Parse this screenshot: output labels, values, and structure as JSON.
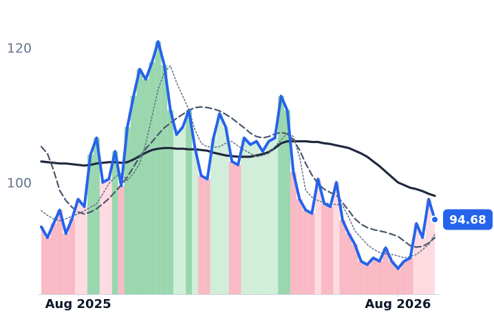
{
  "chart_data": {
    "type": "line",
    "x": [
      0,
      1,
      2,
      3,
      4,
      5,
      6,
      7,
      8,
      9,
      10,
      11,
      12,
      13,
      14,
      15,
      16,
      17,
      18,
      19,
      20,
      21,
      22,
      23,
      24,
      25,
      26,
      27,
      28,
      29,
      30,
      31,
      32,
      33,
      34,
      35,
      36,
      37,
      38,
      39,
      40,
      41,
      42,
      43,
      44,
      45,
      46,
      47,
      48,
      49,
      50,
      51,
      52,
      53,
      54,
      55,
      56,
      57,
      58,
      59,
      60,
      61,
      62,
      63,
      64
    ],
    "xlim": [
      0,
      64
    ],
    "xticks": [
      {
        "value": 6,
        "label": "Aug 2025"
      },
      {
        "value": 58,
        "label": "Aug 2026"
      }
    ],
    "ylim": [
      83.6,
      124.2
    ],
    "yticks": [
      100,
      120
    ],
    "shading": {
      "above_strong": "#9ad7ae",
      "above_weak": "#d1eedb",
      "below_strong": "#f9bac6",
      "below_weak": "#fddbe1"
    },
    "series": [
      {
        "color": "#2563eb",
        "width": 4,
        "dash": "none",
        "last_label": true,
        "values": [
          93.6,
          92,
          94.1,
          96.1,
          92.6,
          94.8,
          97.7,
          96.6,
          104.3,
          106.8,
          100.2,
          100.7,
          104.8,
          99.7,
          108.4,
          113,
          117,
          115.5,
          118,
          121.1,
          117.6,
          110.9,
          107.3,
          108.4,
          110.9,
          105.3,
          101.2,
          100.7,
          106.8,
          110.4,
          108.4,
          103.3,
          102.8,
          106.8,
          105.8,
          106.3,
          104.8,
          106.3,
          106.8,
          113,
          110.9,
          101.7,
          97.7,
          96.1,
          95.6,
          100.7,
          97.1,
          96.6,
          100.2,
          94.6,
          92.6,
          91,
          88.5,
          88,
          89,
          88.5,
          90.5,
          88.5,
          87.4,
          88.5,
          89,
          94.1,
          92,
          97.7,
          94.68
        ]
      },
      {
        "color": "#64748b",
        "width": 1.6,
        "dash": "2 3",
        "last_label": false,
        "values": [
          96,
          95.3,
          94.8,
          94.5,
          94.8,
          95.2,
          95.5,
          96,
          96.5,
          97,
          98.5,
          100,
          101,
          101.5,
          100.5,
          101.5,
          103,
          106,
          110,
          114,
          116.5,
          117.5,
          115,
          113,
          111,
          108,
          106,
          105.5,
          105.4,
          105.5,
          106,
          106.3,
          105.6,
          105,
          104.5,
          104,
          104.2,
          104.5,
          105.5,
          106.5,
          107.5,
          107,
          104,
          99,
          98,
          97.5,
          97.2,
          97,
          96.9,
          96.8,
          95,
          93,
          92,
          91,
          90.3,
          89.8,
          89.6,
          89.5,
          89.3,
          89,
          89.2,
          89.5,
          90.2,
          91,
          92.5
        ]
      },
      {
        "color": "#475569",
        "width": 2.2,
        "dash": "9 5",
        "last_label": false,
        "values": [
          105.5,
          104.5,
          102,
          99,
          97.5,
          96.5,
          95.8,
          95.5,
          95.8,
          96.3,
          97,
          97.8,
          98.8,
          99.8,
          101,
          102.5,
          104,
          105.2,
          106.2,
          107.3,
          108.3,
          109,
          109.7,
          110.3,
          110.9,
          111.3,
          111.4,
          111.3,
          111.1,
          110.8,
          110.3,
          109.7,
          109,
          108.3,
          107.5,
          107,
          106.8,
          107,
          107.4,
          107.6,
          107.4,
          106.5,
          105,
          103,
          101.3,
          100,
          99.2,
          98.7,
          98.3,
          97.2,
          96,
          94.8,
          94,
          93.5,
          93.2,
          93,
          92.8,
          92.5,
          92.2,
          91.5,
          90.8,
          90.6,
          90.7,
          91.2,
          92
        ]
      },
      {
        "color": "#1e293b",
        "width": 3.2,
        "dash": "none",
        "last_label": false,
        "values": [
          103.3,
          103.2,
          103.1,
          103,
          103,
          102.9,
          102.8,
          102.7,
          102.8,
          103,
          103.1,
          103.2,
          103.2,
          103.1,
          103.2,
          103.6,
          104.1,
          104.6,
          105,
          105.2,
          105.3,
          105.3,
          105.2,
          105.2,
          105.1,
          105.1,
          105,
          104.9,
          104.6,
          104.4,
          104.2,
          104.1,
          104,
          104,
          104,
          104.2,
          104.4,
          104.7,
          105.3,
          106,
          106.3,
          106.3,
          106.3,
          106.3,
          106.2,
          106.2,
          106,
          105.9,
          105.7,
          105.5,
          105.3,
          104.9,
          104.5,
          104,
          103.3,
          102.6,
          101.8,
          101,
          100.2,
          99.8,
          99.4,
          99.2,
          98.9,
          98.5,
          98.2
        ]
      }
    ]
  }
}
